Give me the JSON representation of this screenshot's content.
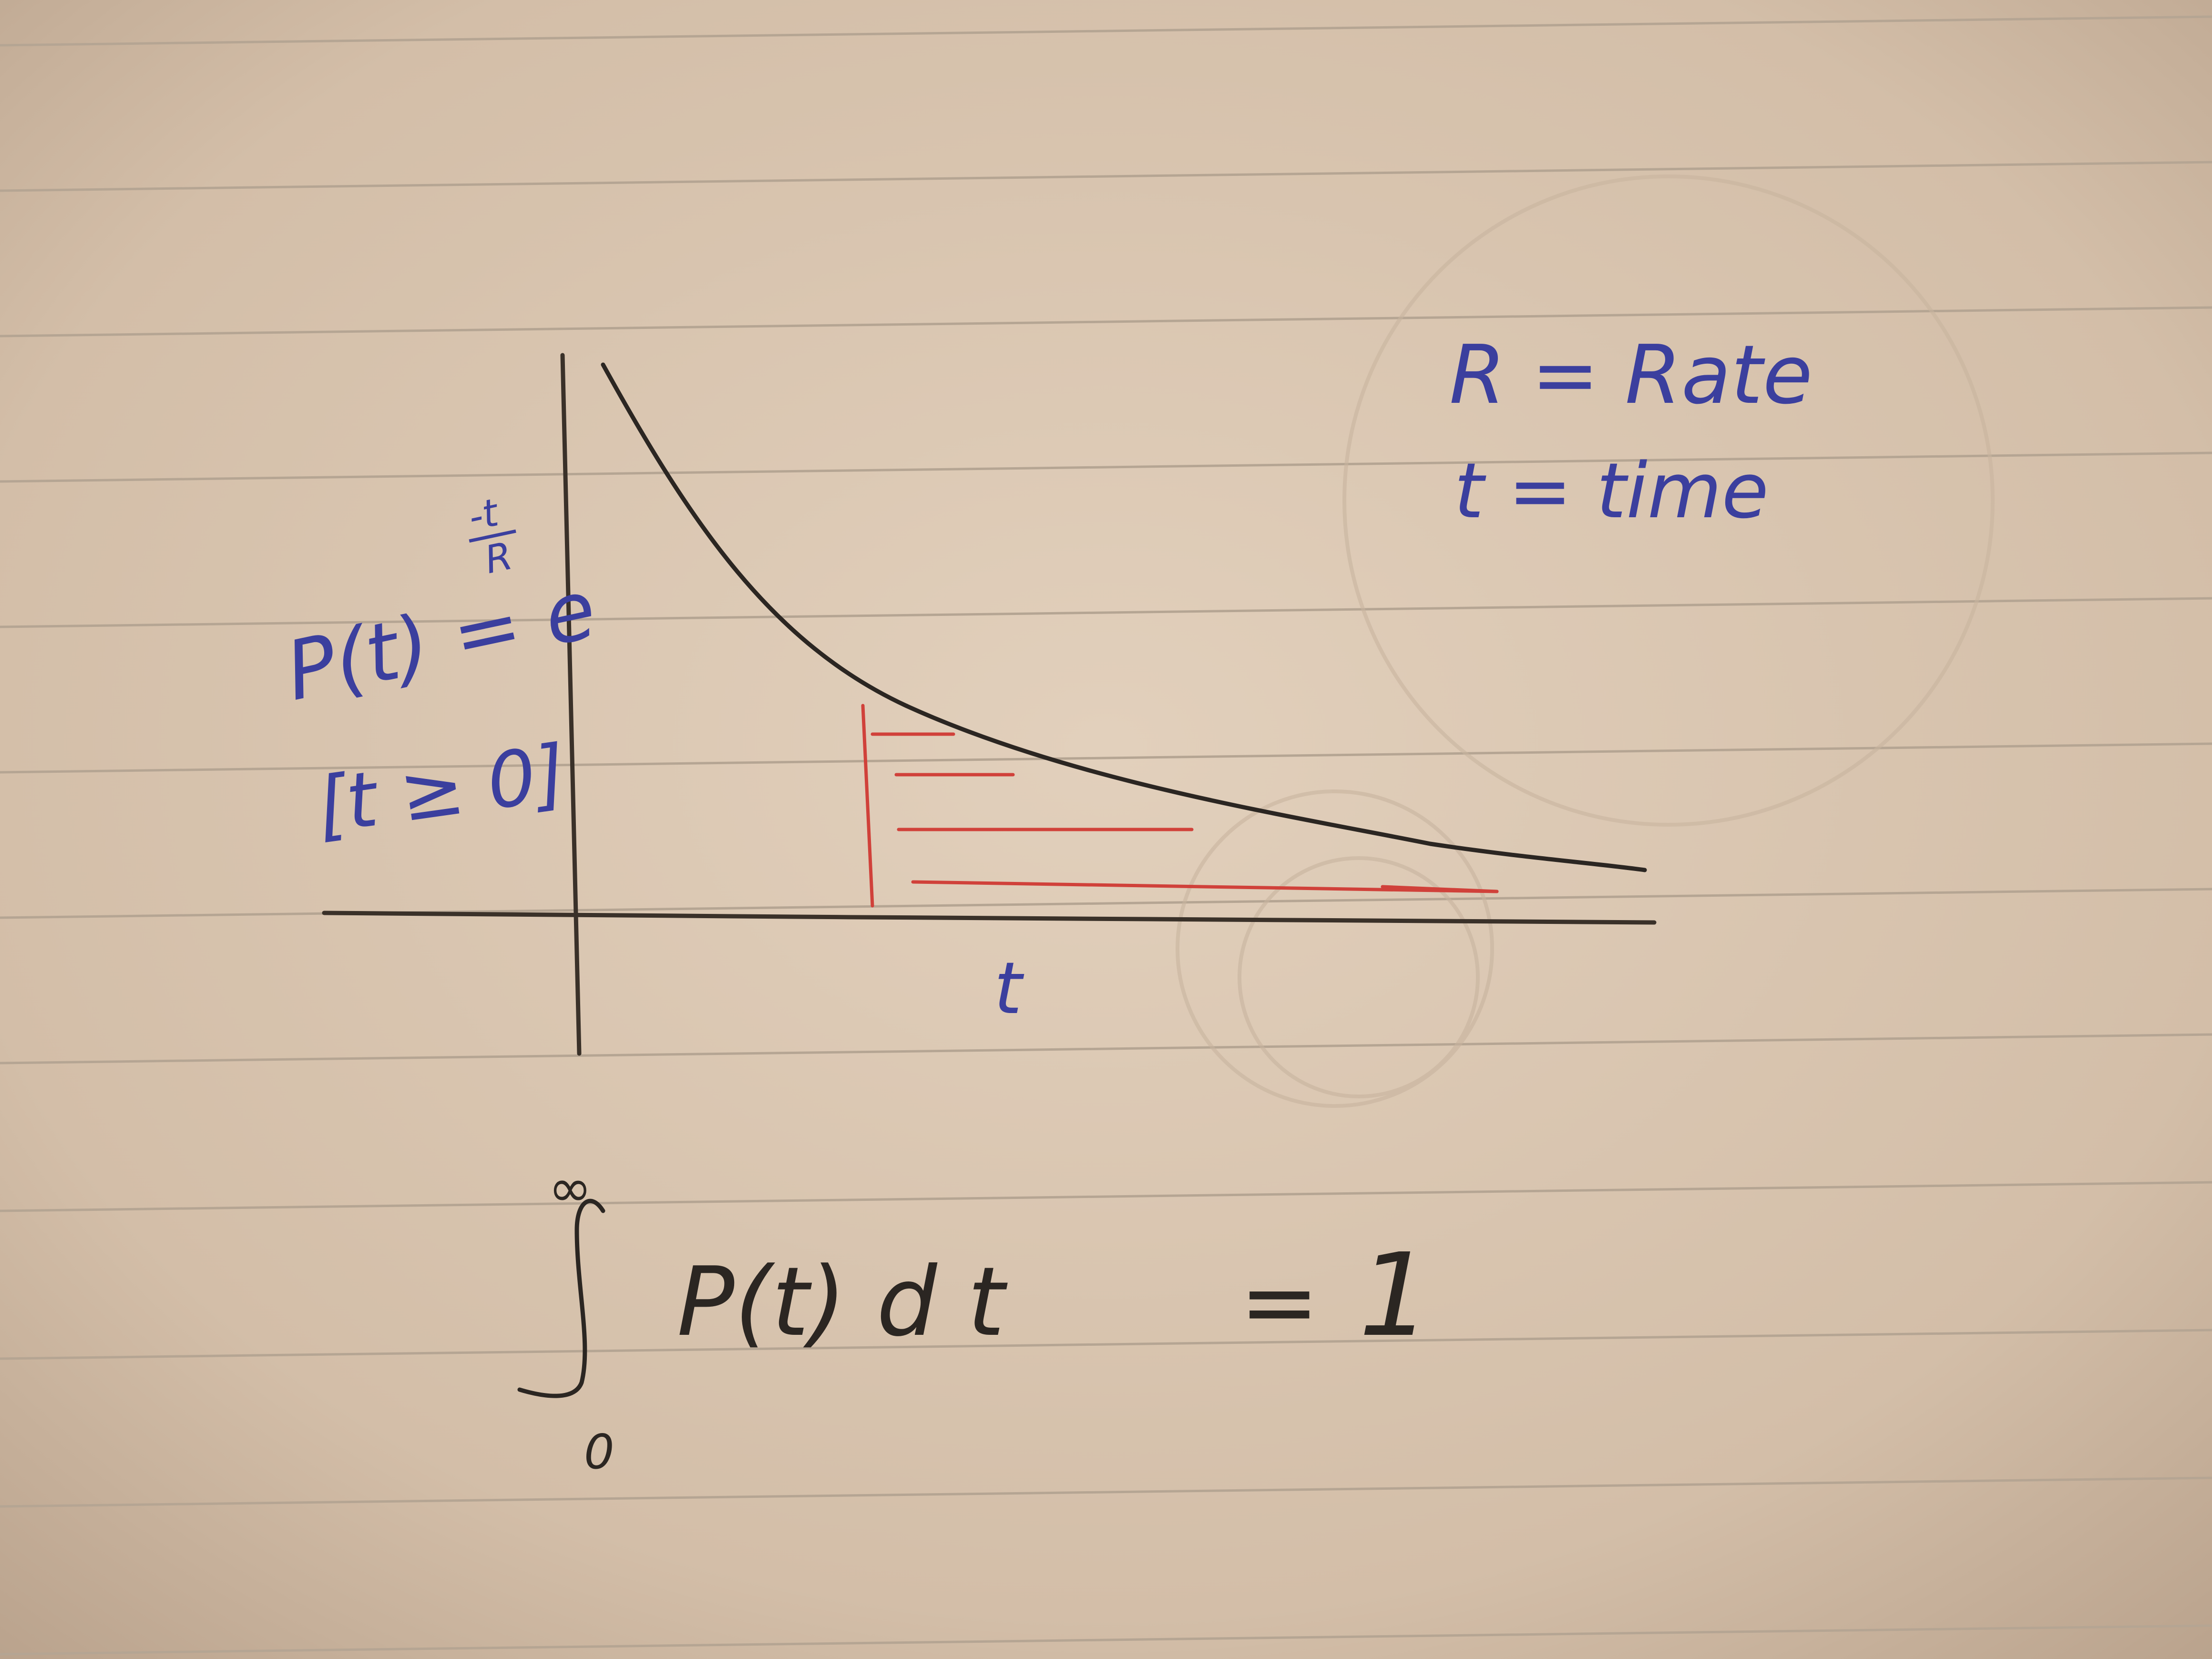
{
  "colors": {
    "paper": "#d6c2ad",
    "rule_line": "#b5a593",
    "black_ink": "#2b2622",
    "blue_ink": "#3b3f9e",
    "red_ink": "#d0413a"
  },
  "legend": {
    "rate_definition": "R = Rate",
    "time_definition": "t = time"
  },
  "graph": {
    "function_label": "P(t) = e",
    "exponent_numerator": "-t",
    "exponent_denominator": "R",
    "domain_condition": "[t ≥ 0]",
    "x_axis_label": "t",
    "curve_shape": "exponential-decay",
    "shaded_region_color": "red"
  },
  "equation": {
    "integral_upper_limit": "∞",
    "integral_lower_limit": "0",
    "integrand": "P(t) d t",
    "equals": "=",
    "result": "1"
  }
}
